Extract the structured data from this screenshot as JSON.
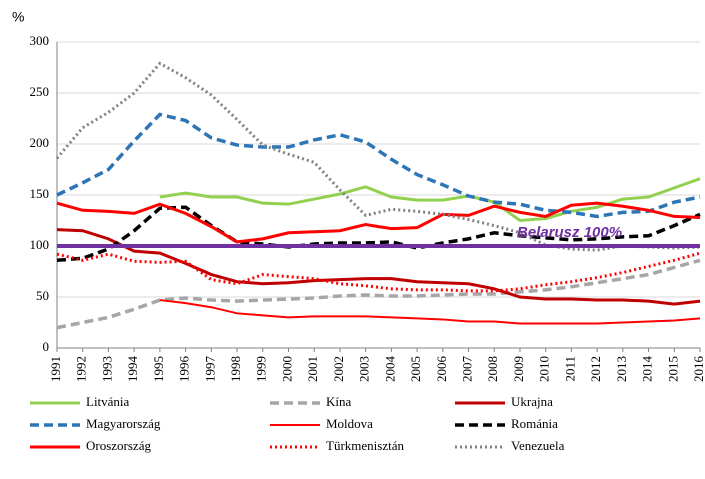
{
  "chart_data": {
    "type": "line",
    "y_label": "%",
    "x": [
      1991,
      1992,
      1993,
      1994,
      1995,
      1996,
      1997,
      1998,
      1999,
      2000,
      2001,
      2002,
      2003,
      2004,
      2005,
      2006,
      2007,
      2008,
      2009,
      2010,
      2011,
      2012,
      2013,
      2014,
      2015,
      2016
    ],
    "xlim": [
      1991,
      2016
    ],
    "ylim": [
      0,
      300
    ],
    "yticks": [
      0,
      50,
      100,
      150,
      200,
      250,
      300
    ],
    "grid": true,
    "reference": {
      "label": "Belarusz 100%",
      "value": 100,
      "color": "#7030a0"
    },
    "series": [
      {
        "name": "Litvánia",
        "color": "#92d050",
        "style": "solid",
        "values": [
          null,
          null,
          null,
          null,
          148,
          152,
          148,
          148,
          142,
          141,
          146,
          151,
          158,
          148,
          145,
          145,
          149,
          143,
          125,
          127,
          134,
          138,
          146,
          148,
          157,
          166
        ]
      },
      {
        "name": "Kína",
        "color": "#a6a6a6",
        "style": "dashed",
        "values": [
          20,
          25,
          30,
          38,
          47,
          49,
          47,
          46,
          47,
          48,
          49,
          51,
          52,
          51,
          51,
          52,
          53,
          53,
          55,
          57,
          60,
          64,
          68,
          72,
          79,
          86
        ]
      },
      {
        "name": "Ukrajna",
        "color": "#c00000",
        "style": "solid",
        "values": [
          116,
          115,
          107,
          95,
          93,
          83,
          72,
          65,
          63,
          64,
          66,
          67,
          68,
          68,
          65,
          64,
          63,
          58,
          50,
          48,
          48,
          47,
          47,
          46,
          43,
          46
        ]
      },
      {
        "name": "Magyarország",
        "color": "#2e75b6",
        "style": "dashed",
        "values": [
          150,
          162,
          175,
          203,
          229,
          223,
          206,
          199,
          197,
          197,
          204,
          209,
          202,
          185,
          170,
          160,
          149,
          143,
          141,
          135,
          133,
          129,
          133,
          134,
          143,
          148
        ]
      },
      {
        "name": "Moldova",
        "color": "#ff0000",
        "style": "thin",
        "values": [
          null,
          null,
          null,
          null,
          47,
          44,
          40,
          34,
          32,
          30,
          31,
          31,
          31,
          30,
          29,
          28,
          26,
          26,
          24,
          24,
          24,
          24,
          25,
          26,
          27,
          29
        ]
      },
      {
        "name": "Románia",
        "color": "#000000",
        "style": "dashed",
        "values": [
          86,
          88,
          97,
          115,
          137,
          138,
          120,
          104,
          102,
          99,
          102,
          103,
          103,
          104,
          98,
          103,
          107,
          113,
          110,
          108,
          106,
          107,
          109,
          110,
          120,
          131
        ]
      },
      {
        "name": "Oroszország",
        "color": "#ff0000",
        "style": "solid",
        "values": [
          142,
          135,
          134,
          132,
          141,
          132,
          119,
          104,
          107,
          113,
          114,
          115,
          121,
          117,
          118,
          131,
          130,
          139,
          133,
          129,
          140,
          142,
          139,
          135,
          129,
          128
        ]
      },
      {
        "name": "Türkmenisztán",
        "color": "#ff0000",
        "style": "dotted",
        "values": [
          92,
          86,
          92,
          85,
          84,
          85,
          67,
          63,
          72,
          70,
          68,
          63,
          61,
          58,
          57,
          57,
          56,
          56,
          58,
          62,
          65,
          69,
          74,
          80,
          86,
          93
        ]
      },
      {
        "name": "Venezuela",
        "color": "#808080",
        "style": "dotted",
        "values": [
          186,
          216,
          231,
          250,
          279,
          265,
          248,
          224,
          199,
          190,
          182,
          155,
          130,
          136,
          134,
          131,
          126,
          120,
          113,
          101,
          97,
          96,
          100,
          99,
          98,
          99
        ]
      }
    ]
  }
}
